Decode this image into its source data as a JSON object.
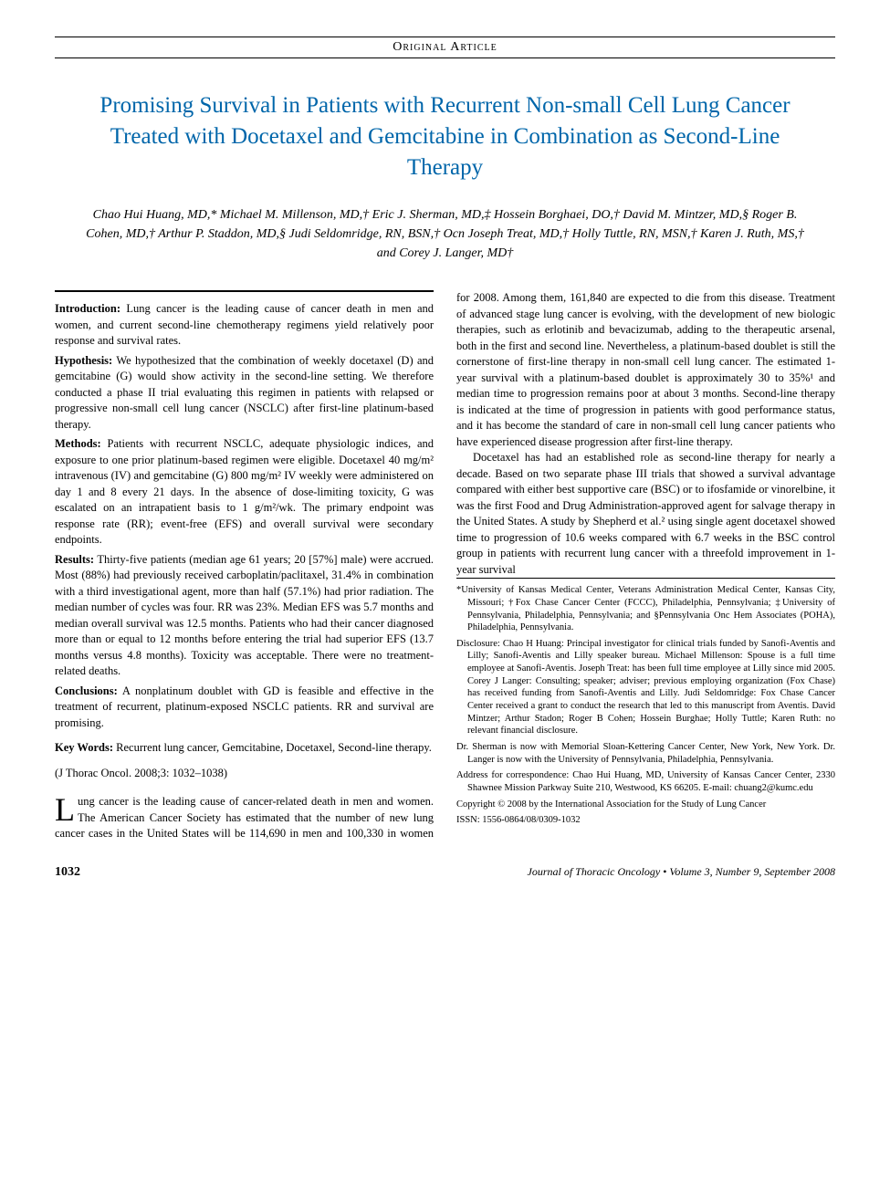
{
  "header": {
    "article_type": "Original Article"
  },
  "title": "Promising Survival in Patients with Recurrent Non-small Cell Lung Cancer Treated with Docetaxel and Gemcitabine in Combination as Second-Line Therapy",
  "authors": "Chao Hui Huang, MD,* Michael M. Millenson, MD,† Eric J. Sherman, MD,‡ Hossein Borghaei, DO,† David M. Mintzer, MD,§ Roger B. Cohen, MD,† Arthur P. Staddon, MD,§ Judi Seldomridge, RN, BSN,† Ocn Joseph Treat, MD,† Holly Tuttle, RN, MSN,† Karen J. Ruth, MS,† and Corey J. Langer, MD†",
  "abstract": {
    "introduction_label": "Introduction:",
    "introduction": " Lung cancer is the leading cause of cancer death in men and women, and current second-line chemotherapy regimens yield relatively poor response and survival rates.",
    "hypothesis_label": "Hypothesis:",
    "hypothesis": " We hypothesized that the combination of weekly docetaxel (D) and gemcitabine (G) would show activity in the second-line setting. We therefore conducted a phase II trial evaluating this regimen in patients with relapsed or progressive non-small cell lung cancer (NSCLC) after first-line platinum-based therapy.",
    "methods_label": "Methods:",
    "methods": " Patients with recurrent NSCLC, adequate physiologic indices, and exposure to one prior platinum-based regimen were eligible. Docetaxel 40 mg/m² intravenous (IV) and gemcitabine (G) 800 mg/m² IV weekly were administered on day 1 and 8 every 21 days. In the absence of dose-limiting toxicity, G was escalated on an intrapatient basis to 1 g/m²/wk. The primary endpoint was response rate (RR); event-free (EFS) and overall survival were secondary endpoints.",
    "results_label": "Results:",
    "results": " Thirty-five patients (median age 61 years; 20 [57%] male) were accrued. Most (88%) had previously received carboplatin/paclitaxel, 31.4% in combination with a third investigational agent, more than half (57.1%) had prior radiation. The median number of cycles was four. RR was 23%. Median EFS was 5.7 months and median overall survival was 12.5 months. Patients who had their cancer diagnosed more than or equal to 12 months before entering the trial had superior EFS (13.7 months versus 4.8 months). Toxicity was acceptable. There were no treatment-related deaths.",
    "conclusions_label": "Conclusions:",
    "conclusions": " A nonplatinum doublet with GD is feasible and effective in the treatment of recurrent, platinum-exposed NSCLC patients. RR and survival are promising.",
    "keywords_label": "Key Words:",
    "keywords": " Recurrent lung cancer, Gemcitabine, Docetaxel, Second-line therapy.",
    "citation": "(J Thorac Oncol. 2008;3: 1032–1038)"
  },
  "affiliations": {
    "a1": "*University of Kansas Medical Center, Veterans Administration Medical Center, Kansas City, Missouri; †Fox Chase Cancer Center (FCCC), Philadelphia, Pennsylvania; ‡University of Pennsylvania, Philadelphia, Pennsylvania; and §Pennsylvania Onc Hem Associates (POHA), Philadelphia, Pennsylvania.",
    "a2": "Disclosure: Chao H Huang: Principal investigator for clinical trials funded by Sanofi-Aventis and Lilly; Sanofi-Aventis and Lilly speaker bureau. Michael Millenson: Spouse is a full time employee at Sanofi-Aventis. Joseph Treat: has been full time employee at Lilly since mid 2005. Corey J Langer: Consulting; speaker; adviser; previous employing organization (Fox Chase) has received funding from Sanofi-Aventis and Lilly. Judi Seldomridge: Fox Chase Cancer Center received a grant to conduct the research that led to this manuscript from Aventis. David Mintzer; Arthur Stadon; Roger B Cohen; Hossein Burghae; Holly Tuttle; Karen Ruth: no relevant financial disclosure.",
    "a3": "Dr. Sherman is now with Memorial Sloan-Kettering Cancer Center, New York, New York. Dr. Langer is now with the University of Pennsylvania, Philadelphia, Pennsylvania.",
    "a4": "Address for correspondence: Chao Hui Huang, MD, University of Kansas Cancer Center, 2330 Shawnee Mission Parkway Suite 210, Westwood, KS 66205. E-mail: chuang2@kumc.edu",
    "a5": "Copyright © 2008 by the International Association for the Study of Lung Cancer",
    "a6": "ISSN: 1556-0864/08/0309-1032"
  },
  "body": {
    "p1_dropcap": "L",
    "p1": "ung cancer is the leading cause of cancer-related death in men and women. The American Cancer Society has estimated that the number of new lung cancer cases in the United States will be 114,690 in men and 100,330 in women for 2008. Among them, 161,840 are expected to die from this disease. Treatment of advanced stage lung cancer is evolving, with the development of new biologic therapies, such as erlotinib and bevacizumab, adding to the therapeutic arsenal, both in the first and second line. Nevertheless, a platinum-based doublet is still the cornerstone of first-line therapy in non-small cell lung cancer. The estimated 1-year survival with a platinum-based doublet is approximately 30 to 35%¹ and median time to progression remains poor at about 3 months. Second-line therapy is indicated at the time of progression in patients with good performance status, and it has become the standard of care in non-small cell lung cancer patients who have experienced disease progression after first-line therapy.",
    "p2": "Docetaxel has had an established role as second-line therapy for nearly a decade. Based on two separate phase III trials that showed a survival advantage compared with either best supportive care (BSC) or to ifosfamide or vinorelbine, it was the first Food and Drug Administration-approved agent for salvage therapy in the United States. A study by Shepherd et al.² using single agent docetaxel showed time to progression of 10.6 weeks compared with 6.7 weeks in the BSC control group in patients with recurrent lung cancer with a threefold improvement in 1-year survival"
  },
  "footer": {
    "page_number": "1032",
    "journal": "Journal of Thoracic Oncology • Volume 3, Number 9, September 2008"
  },
  "colors": {
    "title_color": "#0066aa",
    "text_color": "#000000",
    "background": "#ffffff"
  }
}
